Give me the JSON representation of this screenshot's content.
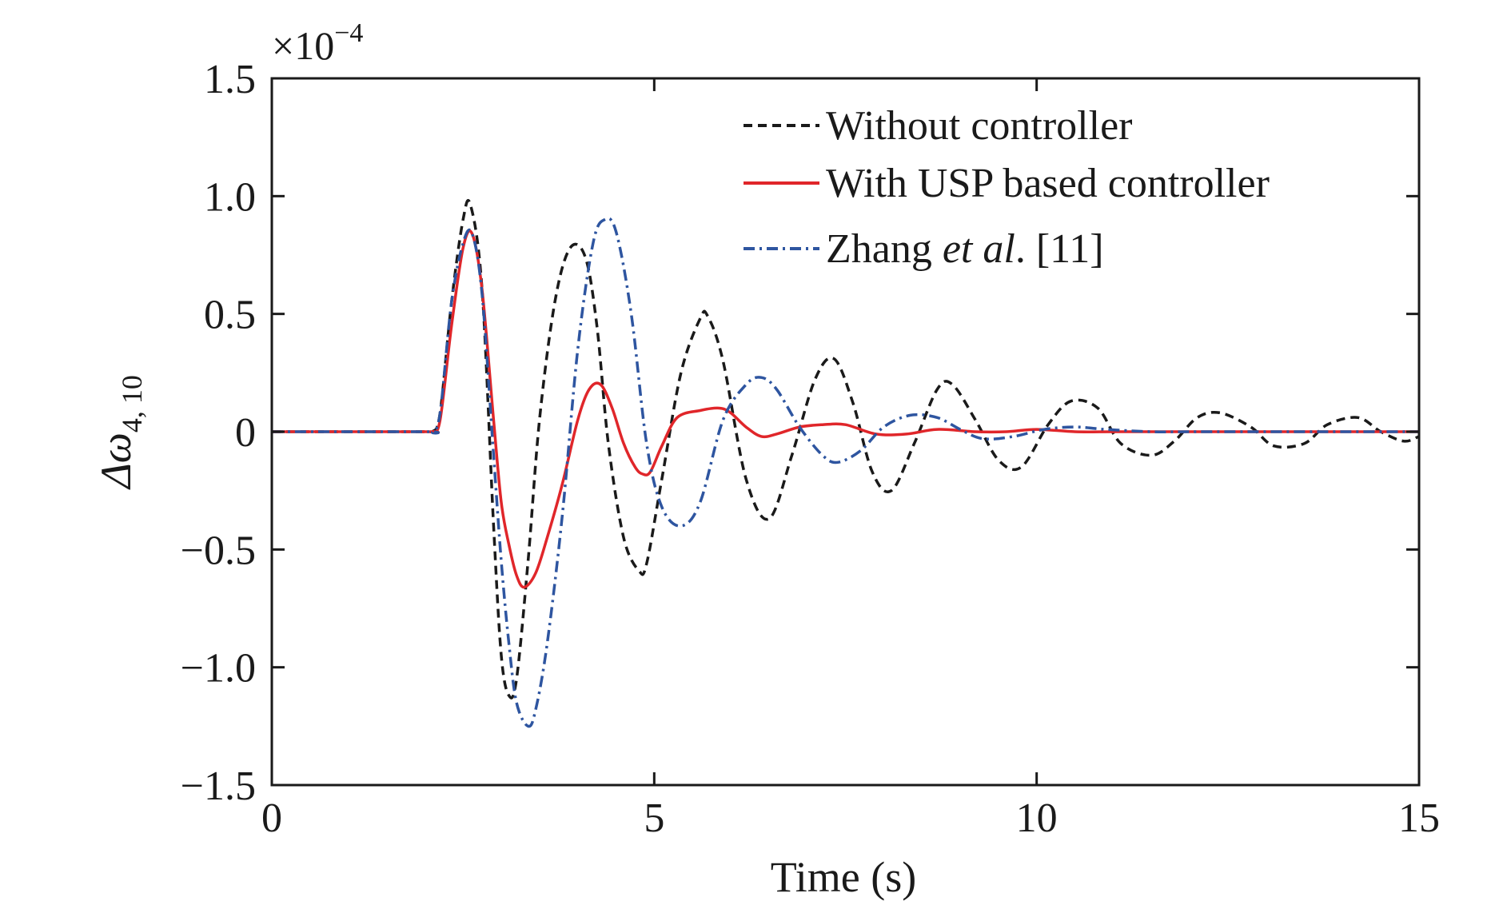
{
  "chart_data": {
    "type": "line",
    "title": "",
    "xlabel": "Time (s)",
    "ylabel_base": "Δω",
    "ylabel_sub": "4, 10",
    "y_exponent_prefix": "×10",
    "y_exponent_power": "−4",
    "xlim": [
      0,
      15
    ],
    "ylim": [
      -1.5,
      1.5
    ],
    "xticks": [
      0,
      5,
      10,
      15
    ],
    "xtick_labels": [
      "0",
      "5",
      "10",
      "15"
    ],
    "yticks": [
      1.5,
      1.0,
      0.5,
      0,
      -0.5,
      -1.0,
      -1.5
    ],
    "ytick_labels": [
      "1.5",
      "1.0",
      "0.5",
      "0",
      "−0.5",
      "−1.0",
      "−1.5"
    ],
    "grid": false,
    "legend_position": "top-right",
    "series": [
      {
        "name": "Without controller",
        "color": "#1a1a1a",
        "style": "dashed",
        "x": [
          0,
          2.0,
          2.1,
          2.2,
          2.35,
          2.5,
          2.6,
          2.75,
          2.9,
          3.0,
          3.1,
          3.2,
          3.35,
          3.5,
          3.7,
          3.9,
          4.1,
          4.25,
          4.4,
          4.6,
          4.8,
          4.9,
          5.1,
          5.35,
          5.6,
          5.7,
          5.9,
          6.2,
          6.5,
          6.8,
          7.1,
          7.35,
          7.6,
          7.85,
          8.1,
          8.4,
          8.7,
          8.9,
          9.2,
          9.5,
          9.8,
          10.15,
          10.45,
          10.8,
          11.1,
          11.5,
          11.8,
          12.1,
          12.4,
          12.8,
          13.1,
          13.5,
          13.8,
          14.2,
          14.5,
          14.8,
          15.0
        ],
        "y": [
          0,
          0,
          0.0,
          0.08,
          0.55,
          0.9,
          0.96,
          0.6,
          -0.4,
          -0.95,
          -1.12,
          -1.05,
          -0.55,
          0.05,
          0.55,
          0.78,
          0.74,
          0.45,
          -0.05,
          -0.45,
          -0.59,
          -0.56,
          -0.2,
          0.25,
          0.48,
          0.49,
          0.3,
          -0.2,
          -0.37,
          -0.1,
          0.22,
          0.31,
          0.12,
          -0.17,
          -0.25,
          -0.05,
          0.18,
          0.2,
          0.05,
          -0.12,
          -0.15,
          0.03,
          0.13,
          0.1,
          -0.05,
          -0.1,
          -0.04,
          0.06,
          0.08,
          0.02,
          -0.06,
          -0.05,
          0.03,
          0.06,
          0.0,
          -0.04,
          -0.02
        ]
      },
      {
        "name": "With USP based controller",
        "color": "#e0262a",
        "style": "solid",
        "x": [
          0,
          2.0,
          2.1,
          2.2,
          2.35,
          2.5,
          2.62,
          2.75,
          2.9,
          3.0,
          3.1,
          3.2,
          3.3,
          3.45,
          3.6,
          3.8,
          4.0,
          4.15,
          4.3,
          4.45,
          4.6,
          4.75,
          4.85,
          4.95,
          5.1,
          5.3,
          5.6,
          5.85,
          6.0,
          6.2,
          6.4,
          6.6,
          6.9,
          7.2,
          7.5,
          7.9,
          8.3,
          8.7,
          9.2,
          9.6,
          10.0,
          10.5,
          11.0,
          11.6,
          12.2,
          13.0,
          14.0,
          15.0
        ],
        "y": [
          0,
          0,
          0.0,
          0.05,
          0.45,
          0.78,
          0.84,
          0.6,
          0.05,
          -0.3,
          -0.48,
          -0.61,
          -0.66,
          -0.6,
          -0.45,
          -0.22,
          0.05,
          0.18,
          0.2,
          0.1,
          -0.05,
          -0.15,
          -0.18,
          -0.17,
          -0.06,
          0.06,
          0.09,
          0.1,
          0.08,
          0.02,
          -0.02,
          -0.01,
          0.02,
          0.03,
          0.03,
          -0.01,
          -0.01,
          0.01,
          0.0,
          0.0,
          0.01,
          0.0,
          0.0,
          0.0,
          0.0,
          0.0,
          0.0,
          0.0
        ]
      },
      {
        "name": "Zhang et al. [11]",
        "name_prefix": "Zhang ",
        "name_italic": "et al",
        "name_suffix": ". [11]",
        "color": "#2e55a0",
        "style": "dashdot",
        "x": [
          0,
          2.0,
          2.1,
          2.2,
          2.35,
          2.5,
          2.62,
          2.75,
          2.9,
          3.0,
          3.1,
          3.2,
          3.35,
          3.45,
          3.6,
          3.8,
          4.0,
          4.2,
          4.35,
          4.5,
          4.7,
          4.9,
          5.1,
          5.35,
          5.6,
          5.9,
          6.2,
          6.4,
          6.6,
          6.9,
          7.2,
          7.4,
          7.7,
          8.0,
          8.35,
          8.7,
          9.0,
          9.3,
          9.7,
          10.1,
          10.5,
          10.9,
          11.5,
          12.0,
          13.0,
          14.0,
          15.0
        ],
        "y": [
          0,
          0,
          0.0,
          0.08,
          0.55,
          0.8,
          0.84,
          0.58,
          -0.1,
          -0.55,
          -0.9,
          -1.15,
          -1.25,
          -1.18,
          -0.9,
          -0.35,
          0.35,
          0.8,
          0.9,
          0.85,
          0.5,
          -0.05,
          -0.32,
          -0.4,
          -0.3,
          0.05,
          0.2,
          0.23,
          0.18,
          0.02,
          -0.1,
          -0.13,
          -0.08,
          0.02,
          0.07,
          0.06,
          0.01,
          -0.03,
          -0.02,
          0.01,
          0.02,
          0.01,
          0.0,
          0.0,
          0.0,
          0.0,
          0.0
        ]
      }
    ]
  }
}
